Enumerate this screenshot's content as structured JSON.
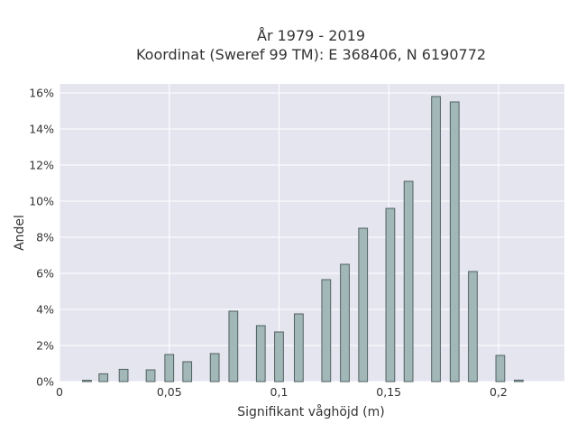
{
  "chart_data": {
    "type": "bar",
    "title": "År 1979 - 2019",
    "subtitle": "Koordinat (Sweref 99 TM): E 368406, N 6190772",
    "xlabel": "Signifikant våghöjd (m)",
    "ylabel": "Andel",
    "xlim": [
      0,
      0.23
    ],
    "ylim": [
      0,
      16.5
    ],
    "x_ticks": [
      {
        "value": 0,
        "label": "0"
      },
      {
        "value": 0.05,
        "label": "0,05"
      },
      {
        "value": 0.1,
        "label": "0,1"
      },
      {
        "value": 0.15,
        "label": "0,15"
      },
      {
        "value": 0.2,
        "label": "0,2"
      }
    ],
    "y_ticks": [
      {
        "value": 0,
        "label": "0%"
      },
      {
        "value": 2,
        "label": "2%"
      },
      {
        "value": 4,
        "label": "4%"
      },
      {
        "value": 6,
        "label": "6%"
      },
      {
        "value": 8,
        "label": "8%"
      },
      {
        "value": 10,
        "label": "10%"
      },
      {
        "value": 12,
        "label": "12%"
      },
      {
        "value": 14,
        "label": "14%"
      },
      {
        "value": 16,
        "label": "16%"
      }
    ],
    "bar_width": 0.004,
    "x": [
      0.0125,
      0.02,
      0.0292,
      0.0415,
      0.05,
      0.0582,
      0.0707,
      0.0792,
      0.0917,
      0.1,
      0.109,
      0.1215,
      0.13,
      0.1383,
      0.1507,
      0.159,
      0.1715,
      0.18,
      0.1883,
      0.2008,
      0.2092
    ],
    "values": [
      0.07,
      0.43,
      0.68,
      0.65,
      1.5,
      1.1,
      1.55,
      3.9,
      3.1,
      2.75,
      3.75,
      5.65,
      6.5,
      8.5,
      9.6,
      11.1,
      15.8,
      15.5,
      6.1,
      1.45,
      0.08
    ],
    "grid": true,
    "colors": {
      "plot_background": "#e5e5f0",
      "bar_fill": "#a2b8b8",
      "bar_edge": "#4f5f5f",
      "grid": "#ffffff"
    }
  }
}
